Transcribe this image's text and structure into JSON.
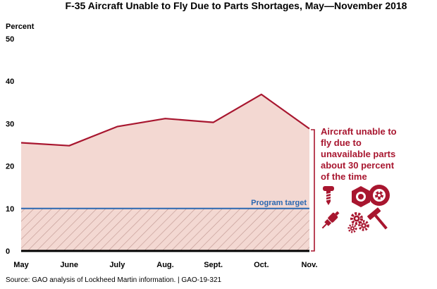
{
  "chart_data": {
    "type": "area",
    "title": "F-35 Aircraft Unable to Fly Due to Parts Shortages, May—November 2018",
    "ylabel": "Percent",
    "xlabel": "",
    "ylim": [
      0,
      50
    ],
    "yticks": [
      0,
      10,
      20,
      30,
      40,
      50
    ],
    "categories": [
      "May",
      "June",
      "July",
      "Aug.",
      "Sept.",
      "Oct.",
      "Nov."
    ],
    "series": [
      {
        "values": [
          25.5,
          24.8,
          29.3,
          31.2,
          30.3,
          36.9,
          28.8
        ]
      }
    ],
    "target": {
      "label": "Program target",
      "value": 10
    },
    "annotation": {
      "lines": [
        "Aircraft unable to",
        "fly due to",
        "unavailable parts",
        "about 30 percent",
        "of the time"
      ]
    },
    "icons": [
      "screw-icon",
      "hex-nut-icon",
      "wheel-icon",
      "spark-plug-icon",
      "gears-icon",
      "hammer-icon"
    ],
    "source": "Source: GAO analysis of Lockheed Martin information.  |  GAO-19-321",
    "colors": {
      "line": "#a8162f",
      "fill": "#f3d8d2",
      "hatch": "#c29a94",
      "target": "#2a67b1",
      "annotation": "#a8162f",
      "baseline": "#000000"
    }
  }
}
